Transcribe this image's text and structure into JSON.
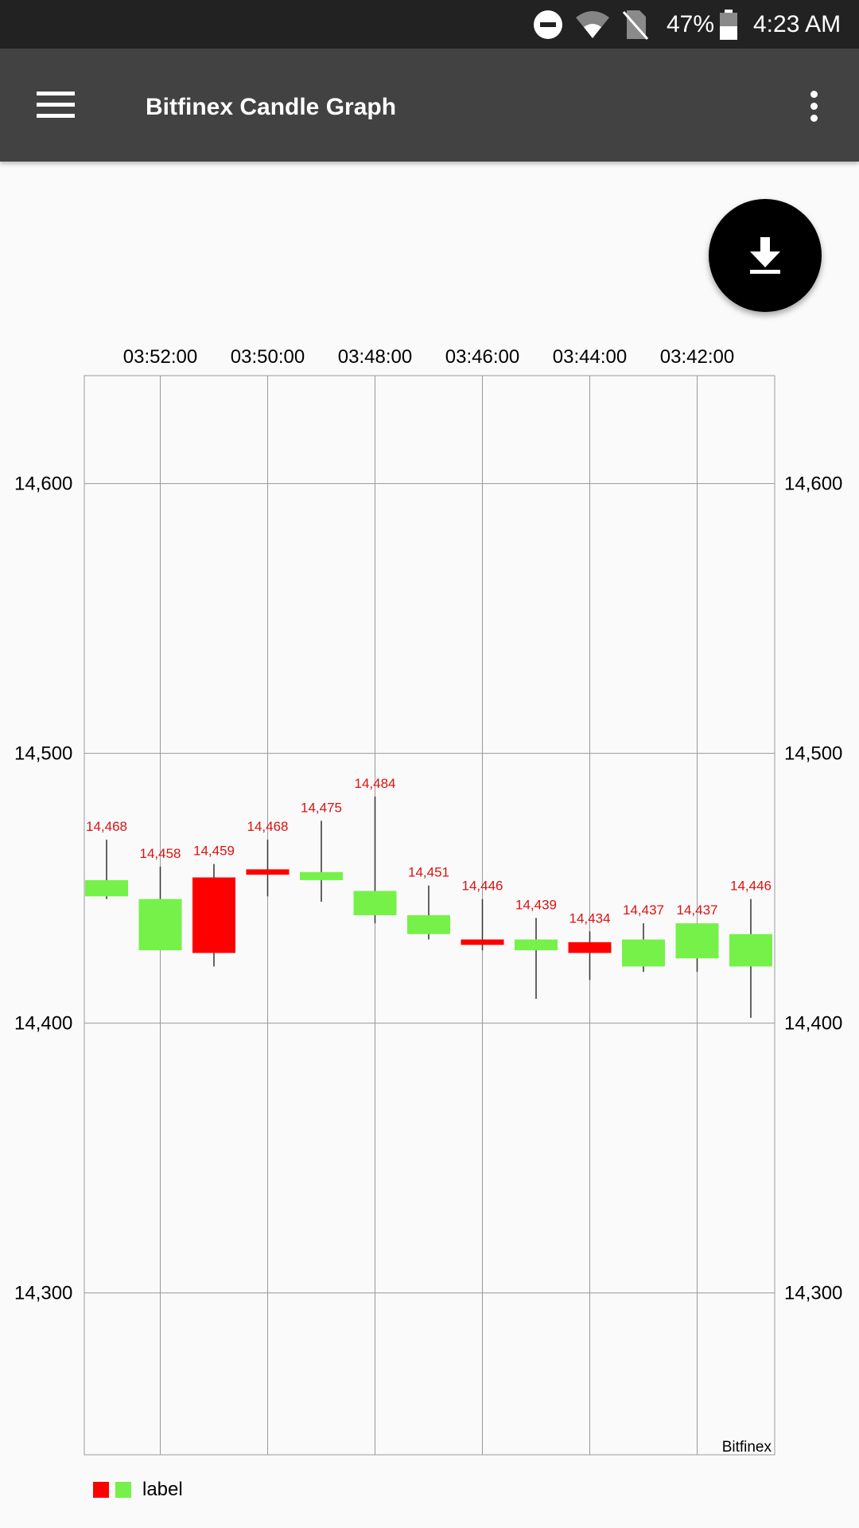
{
  "status_bar": {
    "battery": "47%",
    "time": "4:23 AM",
    "icons": [
      "do-not-disturb-icon",
      "wifi-icon",
      "no-sim-icon",
      "battery-icon"
    ]
  },
  "app_bar": {
    "title": "Bitfinex Candle Graph",
    "menu_icon": "hamburger-menu-icon",
    "overflow_icon": "more-vert-icon"
  },
  "fab": {
    "icon": "download-icon"
  },
  "chart_data": {
    "type": "candlestick",
    "x_tick_labels": [
      "03:52:00",
      "03:50:00",
      "03:48:00",
      "03:46:00",
      "03:44:00",
      "03:42:00"
    ],
    "y_ticks": [
      14300,
      14400,
      14500,
      14600
    ],
    "y_tick_labels": [
      "14,300",
      "14,400",
      "14,500",
      "14,600"
    ],
    "ylim": [
      14240,
      14640
    ],
    "grid": true,
    "description_text": "Bitfinex",
    "legend": {
      "label": "label",
      "position": "bottom-left"
    },
    "colors": {
      "increasing": "#76f149",
      "decreasing": "#ff0000",
      "grid": "#999999",
      "value_label": "#dd1111"
    },
    "candles": [
      {
        "open": 14453,
        "close": 14447,
        "high": 14468,
        "low": 14446,
        "label": "14,468",
        "direction": "increasing"
      },
      {
        "open": 14446,
        "close": 14427,
        "high": 14458,
        "low": 14427,
        "label": "14,458",
        "direction": "increasing"
      },
      {
        "open": 14454,
        "close": 14426,
        "high": 14459,
        "low": 14421,
        "label": "14,459",
        "direction": "decreasing"
      },
      {
        "open": 14457,
        "close": 14455,
        "high": 14468,
        "low": 14447,
        "label": "14,468",
        "direction": "decreasing"
      },
      {
        "open": 14456,
        "close": 14453,
        "high": 14475,
        "low": 14445,
        "label": "14,475",
        "direction": "increasing"
      },
      {
        "open": 14449,
        "close": 14440,
        "high": 14484,
        "low": 14437,
        "label": "14,484",
        "direction": "increasing"
      },
      {
        "open": 14440,
        "close": 14433,
        "high": 14451,
        "low": 14431,
        "label": "14,451",
        "direction": "increasing"
      },
      {
        "open": 14431,
        "close": 14429,
        "high": 14446,
        "low": 14427,
        "label": "14,446",
        "direction": "decreasing"
      },
      {
        "open": 14431,
        "close": 14427,
        "high": 14439,
        "low": 14409,
        "label": "14,439",
        "direction": "increasing"
      },
      {
        "open": 14430,
        "close": 14426,
        "high": 14434,
        "low": 14416,
        "label": "14,434",
        "direction": "decreasing"
      },
      {
        "open": 14431,
        "close": 14421,
        "high": 14437,
        "low": 14419,
        "label": "14,437",
        "direction": "increasing"
      },
      {
        "open": 14437,
        "close": 14424,
        "high": 14437,
        "low": 14419,
        "label": "14,437",
        "direction": "increasing"
      },
      {
        "open": 14433,
        "close": 14421,
        "high": 14446,
        "low": 14402,
        "label": "14,446",
        "direction": "increasing"
      }
    ]
  }
}
